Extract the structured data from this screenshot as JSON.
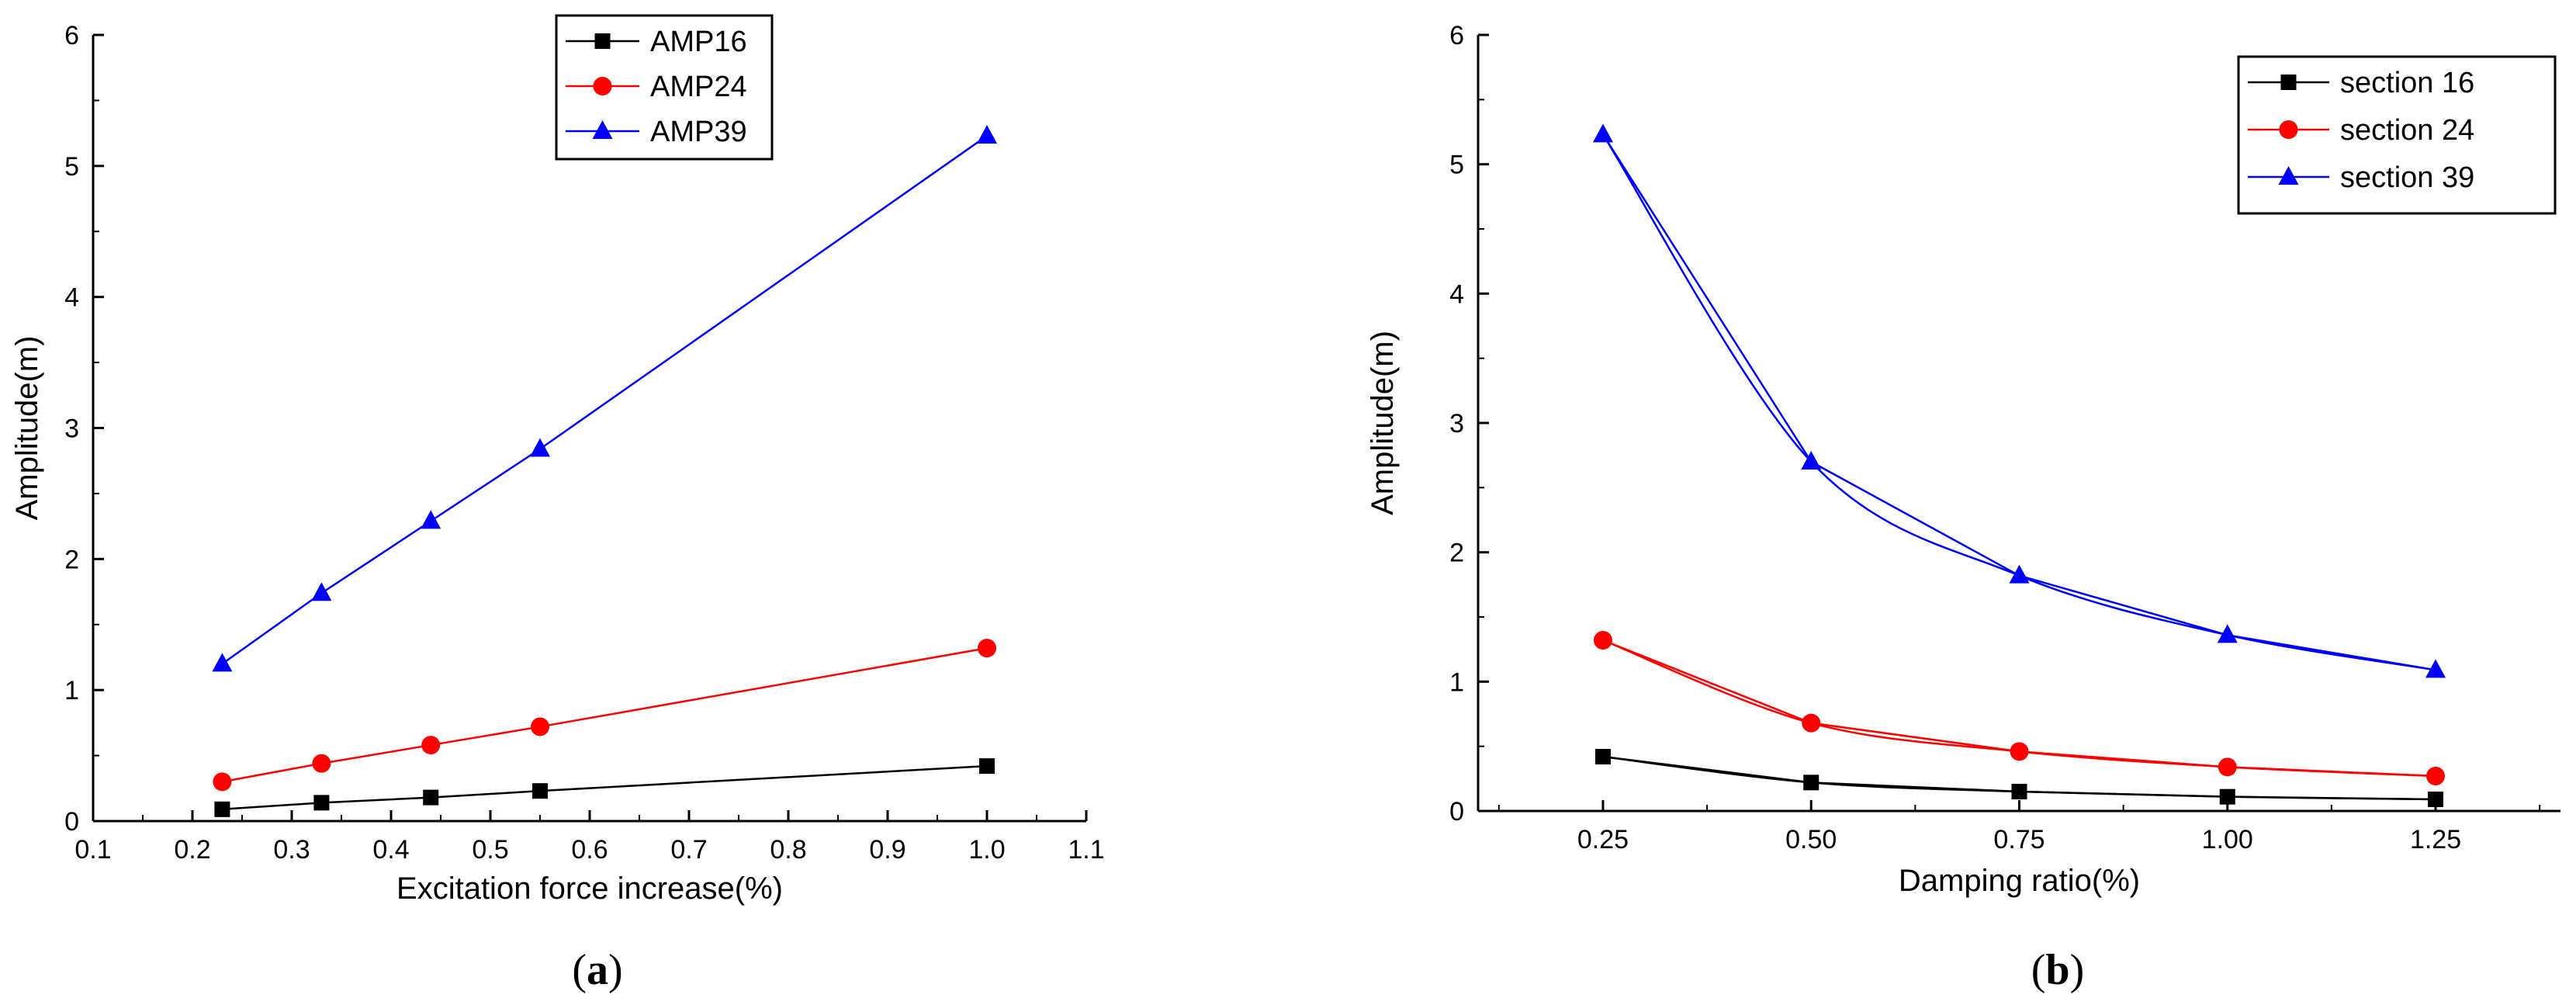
{
  "chart_data": [
    {
      "type": "line",
      "caption_letter": "a",
      "title": "",
      "xlabel": "Excitation force increase(%)",
      "ylabel": "Amplitude(m)",
      "xlim": [
        0.1,
        1.1
      ],
      "ylim": [
        0,
        6
      ],
      "xticks": [
        "0.1",
        "0.2",
        "0.3",
        "0.4",
        "0.5",
        "0.6",
        "0.7",
        "0.8",
        "0.9",
        "1.0",
        "1.1"
      ],
      "yticks": [
        "0",
        "1",
        "2",
        "3",
        "4",
        "5",
        "6"
      ],
      "legend_position": "top-center",
      "smooth": false,
      "series": [
        {
          "name": "AMP16",
          "color": "#000000",
          "marker": "square",
          "x": [
            0.23,
            0.33,
            0.44,
            0.55,
            1.0
          ],
          "y": [
            0.09,
            0.14,
            0.18,
            0.23,
            0.42
          ]
        },
        {
          "name": "AMP24",
          "color": "#ff0000",
          "marker": "circle",
          "x": [
            0.23,
            0.33,
            0.44,
            0.55,
            1.0
          ],
          "y": [
            0.3,
            0.44,
            0.58,
            0.72,
            1.32
          ]
        },
        {
          "name": "AMP39",
          "color": "#0000ff",
          "marker": "triangle",
          "x": [
            0.23,
            0.33,
            0.44,
            0.55,
            1.0
          ],
          "y": [
            1.2,
            1.74,
            2.29,
            2.84,
            5.23
          ]
        }
      ]
    },
    {
      "type": "line",
      "caption_letter": "b",
      "title": "",
      "xlabel": "Damping ratio(%)",
      "ylabel": "Amplitude(m)",
      "xlim": [
        0.1,
        1.4
      ],
      "ylim": [
        0,
        6
      ],
      "xticks": [
        "0.25",
        "0.50",
        "0.75",
        "1.00",
        "1.25"
      ],
      "yticks": [
        "0",
        "1",
        "2",
        "3",
        "4",
        "5",
        "6"
      ],
      "legend_position": "top-right",
      "smooth": true,
      "series": [
        {
          "name": "section 16",
          "color": "#000000",
          "marker": "square",
          "x": [
            0.25,
            0.5,
            0.75,
            1.0,
            1.25
          ],
          "y": [
            0.42,
            0.22,
            0.15,
            0.11,
            0.09
          ]
        },
        {
          "name": "section 24",
          "color": "#ff0000",
          "marker": "circle",
          "x": [
            0.25,
            0.5,
            0.75,
            1.0,
            1.25
          ],
          "y": [
            1.32,
            0.68,
            0.46,
            0.34,
            0.27
          ]
        },
        {
          "name": "section 39",
          "color": "#0000ff",
          "marker": "triangle",
          "x": [
            0.25,
            0.5,
            0.75,
            1.0,
            1.25
          ],
          "y": [
            5.23,
            2.7,
            1.82,
            1.36,
            1.09
          ]
        }
      ]
    }
  ]
}
